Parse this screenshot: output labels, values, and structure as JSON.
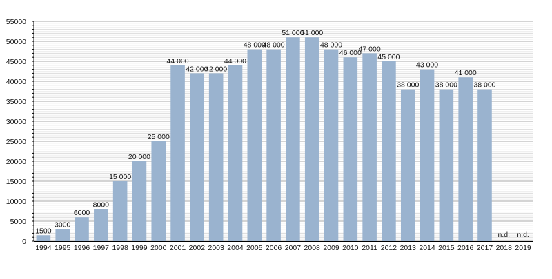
{
  "chart_data": {
    "type": "bar",
    "title": "",
    "xlabel": "",
    "ylabel": "",
    "ylim": [
      0,
      55000
    ],
    "yticks": [
      "0",
      "5000",
      "10000",
      "15000",
      "20000",
      "25000",
      "30000",
      "35000",
      "40000",
      "45000",
      "50000",
      "55000"
    ],
    "grid": true,
    "categories": [
      "1994",
      "1995",
      "1996",
      "1997",
      "1998",
      "1999",
      "2000",
      "2001",
      "2002",
      "2003",
      "2004",
      "2005",
      "2006",
      "2007",
      "2008",
      "2009",
      "2010",
      "2011",
      "2012",
      "2013",
      "2014",
      "2015",
      "2016",
      "2017",
      "2018",
      "2019"
    ],
    "values": [
      1500,
      3000,
      6000,
      8000,
      15000,
      20000,
      25000,
      44000,
      42000,
      42000,
      44000,
      48000,
      48000,
      51000,
      51000,
      48000,
      46000,
      47000,
      45000,
      38000,
      43000,
      38000,
      41000,
      38000,
      null,
      null
    ],
    "labels": [
      "1500",
      "3000",
      "6000",
      "8000",
      "15 000",
      "20 000",
      "25 000",
      "44 000",
      "42 000",
      "42 000",
      "44 000",
      "48 000",
      "48 000",
      "51 000",
      "51 000",
      "48 000",
      "46 000",
      "47 000",
      "45 000",
      "38 000",
      "43 000",
      "38 000",
      "41 000",
      "38 000",
      "n.d.",
      "n.d."
    ],
    "bar_color": "#9ab3cf"
  }
}
